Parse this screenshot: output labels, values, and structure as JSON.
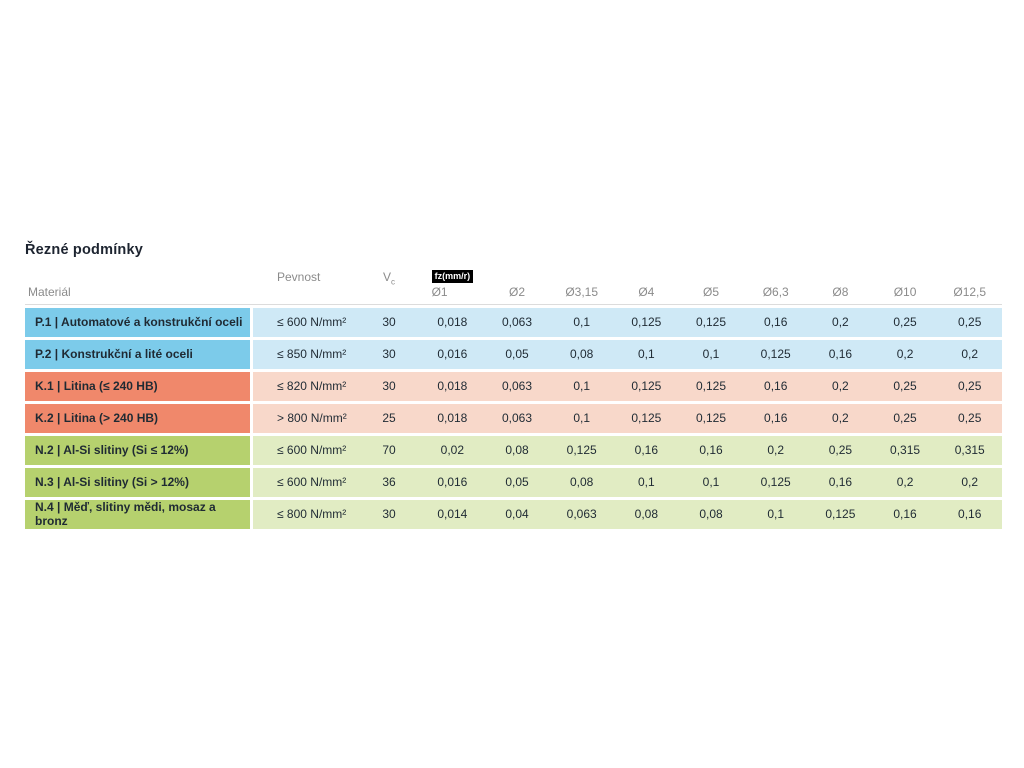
{
  "title": "Řezné podmínky",
  "colors": {
    "steel_label": "#7ccbea",
    "steel_light": "#cfe9f6",
    "castiron_label": "#f0886b",
    "castiron_light": "#f8d8ca",
    "nonferrous_label": "#b6d16e",
    "nonferrous_light": "#e1ecc3",
    "header_text": "#8b8b8b",
    "body_text": "#1f2a33",
    "badge_bg": "#000000"
  },
  "table": {
    "headers": {
      "material": "Materiál",
      "pevnost": "Pevnost",
      "vc_base": "V",
      "vc_sub": "c",
      "fz_badge": "fz(mm/r)",
      "diameters": [
        "Ø1",
        "Ø2",
        "Ø3,15",
        "Ø4",
        "Ø5",
        "Ø6,3",
        "Ø8",
        "Ø10",
        "Ø12,5"
      ]
    },
    "rows": [
      {
        "group": "steel",
        "label": "P.1 | Automatové a konstrukční oceli",
        "pevnost": "≤ 600 N/mm²",
        "vc": "30",
        "values": [
          "0,018",
          "0,063",
          "0,1",
          "0,125",
          "0,125",
          "0,16",
          "0,2",
          "0,25",
          "0,25"
        ]
      },
      {
        "group": "steel",
        "label": "P.2 | Konstrukční a lité oceli",
        "pevnost": "≤ 850 N/mm²",
        "vc": "30",
        "values": [
          "0,016",
          "0,05",
          "0,08",
          "0,1",
          "0,1",
          "0,125",
          "0,16",
          "0,2",
          "0,2"
        ]
      },
      {
        "group": "castiron",
        "label": "K.1 | Litina (≤ 240 HB)",
        "pevnost": "≤ 820 N/mm²",
        "vc": "30",
        "values": [
          "0,018",
          "0,063",
          "0,1",
          "0,125",
          "0,125",
          "0,16",
          "0,2",
          "0,25",
          "0,25"
        ]
      },
      {
        "group": "castiron",
        "label": "K.2 | Litina (> 240 HB)",
        "pevnost": "> 800 N/mm²",
        "vc": "25",
        "values": [
          "0,018",
          "0,063",
          "0,1",
          "0,125",
          "0,125",
          "0,16",
          "0,2",
          "0,25",
          "0,25"
        ]
      },
      {
        "group": "nonferrous",
        "label": "N.2 | Al-Si slitiny (Si ≤ 12%)",
        "pevnost": "≤ 600 N/mm²",
        "vc": "70",
        "values": [
          "0,02",
          "0,08",
          "0,125",
          "0,16",
          "0,16",
          "0,2",
          "0,25",
          "0,315",
          "0,315"
        ]
      },
      {
        "group": "nonferrous",
        "label": "N.3 | Al-Si slitiny (Si > 12%)",
        "pevnost": "≤ 600 N/mm²",
        "vc": "36",
        "values": [
          "0,016",
          "0,05",
          "0,08",
          "0,1",
          "0,1",
          "0,125",
          "0,16",
          "0,2",
          "0,2"
        ]
      },
      {
        "group": "nonferrous",
        "label": "N.4 | Měď, slitiny mědi, mosaz a bronz",
        "pevnost": "≤ 800 N/mm²",
        "vc": "30",
        "values": [
          "0,014",
          "0,04",
          "0,063",
          "0,08",
          "0,08",
          "0,1",
          "0,125",
          "0,16",
          "0,16"
        ]
      }
    ]
  }
}
